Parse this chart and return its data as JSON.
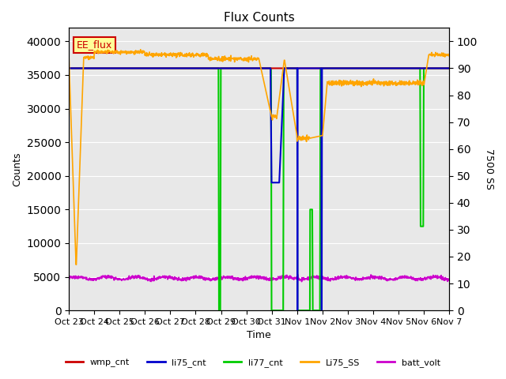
{
  "title": "Flux Counts",
  "xlabel": "Time",
  "ylabel_left": "Counts",
  "ylabel_right": "7500 SS",
  "ylim_left": [
    0,
    42000
  ],
  "ylim_right": [
    0,
    105
  ],
  "yticks_left": [
    0,
    5000,
    10000,
    15000,
    20000,
    25000,
    30000,
    35000,
    40000
  ],
  "yticks_right": [
    0,
    10,
    20,
    30,
    40,
    50,
    60,
    70,
    80,
    90,
    100
  ],
  "bg_color": "#e8e8e8",
  "annotation_text": "EE_flux",
  "annotation_color": "#cc0000",
  "annotation_bg": "#ffff99",
  "series": {
    "wmp_cnt": {
      "color": "#cc0000",
      "lw": 1.5
    },
    "li75_cnt": {
      "color": "#0000cc",
      "lw": 1.5
    },
    "li77_cnt": {
      "color": "#00cc00",
      "lw": 1.5
    },
    "Li75_SS": {
      "color": "#ffa500",
      "lw": 1.2
    },
    "batt_volt": {
      "color": "#cc00cc",
      "lw": 1.2
    }
  },
  "xtick_labels": [
    "Oct 23",
    "Oct 24",
    "Oct 25",
    "Oct 26",
    "Oct 27",
    "Oct 28",
    "Oct 29",
    "Oct 30",
    "Oct 31",
    "Nov 1",
    "Nov 2",
    "Nov 3",
    "Nov 4",
    "Nov 5",
    "Nov 6",
    "Nov 7"
  ],
  "legend_entries": [
    {
      "label": "wmp_cnt",
      "color": "#cc0000"
    },
    {
      "label": "li75_cnt",
      "color": "#0000cc"
    },
    {
      "label": "li77_cnt",
      "color": "#00cc00"
    },
    {
      "label": "Li75_SS",
      "color": "#ffa500"
    },
    {
      "label": "batt_volt",
      "color": "#cc00cc"
    }
  ]
}
